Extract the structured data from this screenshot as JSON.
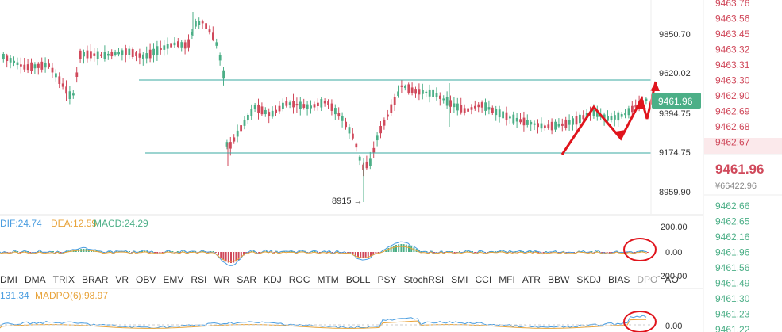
{
  "main_axis_labels": [
    "9850.70",
    "9620.02",
    "9394.75",
    "9174.75",
    "8959.90"
  ],
  "current_price_tag": "9461.96",
  "low_annotation": "8915 →",
  "macd": {
    "dif_label": "DIF:24.74",
    "dea_label": "DEA:12.59",
    "macd_label": "MACD:24.29",
    "axis_labels": [
      "200.00",
      "0.00",
      "-200.00"
    ]
  },
  "madpo": {
    "partial_label": "131.34",
    "madpo_label": "MADPO(6):98.97",
    "axis_label": "0.00"
  },
  "indicators": [
    "DMI",
    "DMA",
    "TRIX",
    "BRAR",
    "VR",
    "OBV",
    "EMV",
    "RSI",
    "WR",
    "SAR",
    "KDJ",
    "ROC",
    "MTM",
    "BOLL",
    "PSY",
    "StochRSI",
    "SMI",
    "CCI",
    "MFI",
    "ATR",
    "BBW",
    "SKDJ",
    "BIAS",
    "DPO",
    "AO"
  ],
  "indicators_dimmed": [
    "DPO"
  ],
  "order_book": {
    "asks": [
      "9463.76",
      "9463.56",
      "9463.45",
      "9463.32",
      "9463.31",
      "9463.30",
      "9462.90",
      "9462.69",
      "9462.68",
      "9462.67"
    ],
    "last_price": "9461.96",
    "last_price_cny": "¥66422.96",
    "bids": [
      "9462.66",
      "9462.65",
      "9462.16",
      "9461.96",
      "9461.56",
      "9461.49",
      "9461.30",
      "9461.23",
      "9461.22"
    ]
  },
  "colors": {
    "up": "#4caf87",
    "down": "#d0495b",
    "support_line": "#3aa8a0",
    "annotation": "#e0141c",
    "dif_line": "#4a9de0",
    "dea_line": "#e8a33a",
    "price_tag_bg": "#4caf87"
  }
}
